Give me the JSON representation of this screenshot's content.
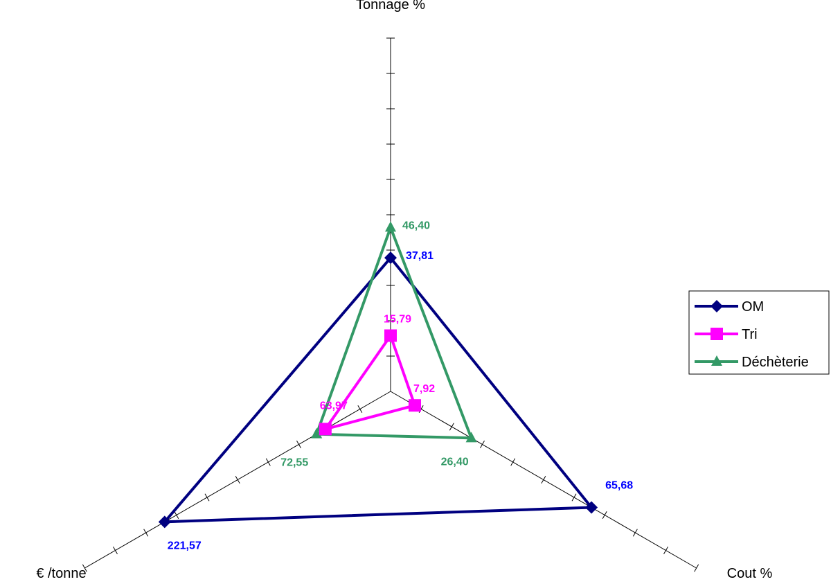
{
  "chart_data": {
    "type": "radar",
    "axes": [
      {
        "label": "Tonnage %",
        "max": 100,
        "tick_step": 10
      },
      {
        "label": "Cout %",
        "max": 100,
        "tick_step": 10
      },
      {
        "label": "€ /tonne",
        "max": 300,
        "tick_step": 30
      }
    ],
    "series": [
      {
        "name": "OM",
        "values": [
          37.81,
          65.68,
          221.57
        ],
        "labels": [
          "37,81",
          "65,68",
          "221,57"
        ],
        "color": "#000080",
        "label_color": "#0000FF",
        "marker": "diamond"
      },
      {
        "name": "Tri",
        "values": [
          15.79,
          7.92,
          63.97
        ],
        "labels": [
          "15,79",
          "7,92",
          "63,97"
        ],
        "color": "#FF00FF",
        "label_color": "#FF00FF",
        "marker": "square"
      },
      {
        "name": "Déchèterie",
        "values": [
          46.4,
          26.4,
          72.55
        ],
        "labels": [
          "46,40",
          "26,40",
          "72,55"
        ],
        "color": "#339966",
        "label_color": "#339966",
        "marker": "triangle"
      }
    ],
    "legend_position": "right",
    "grid": false
  }
}
